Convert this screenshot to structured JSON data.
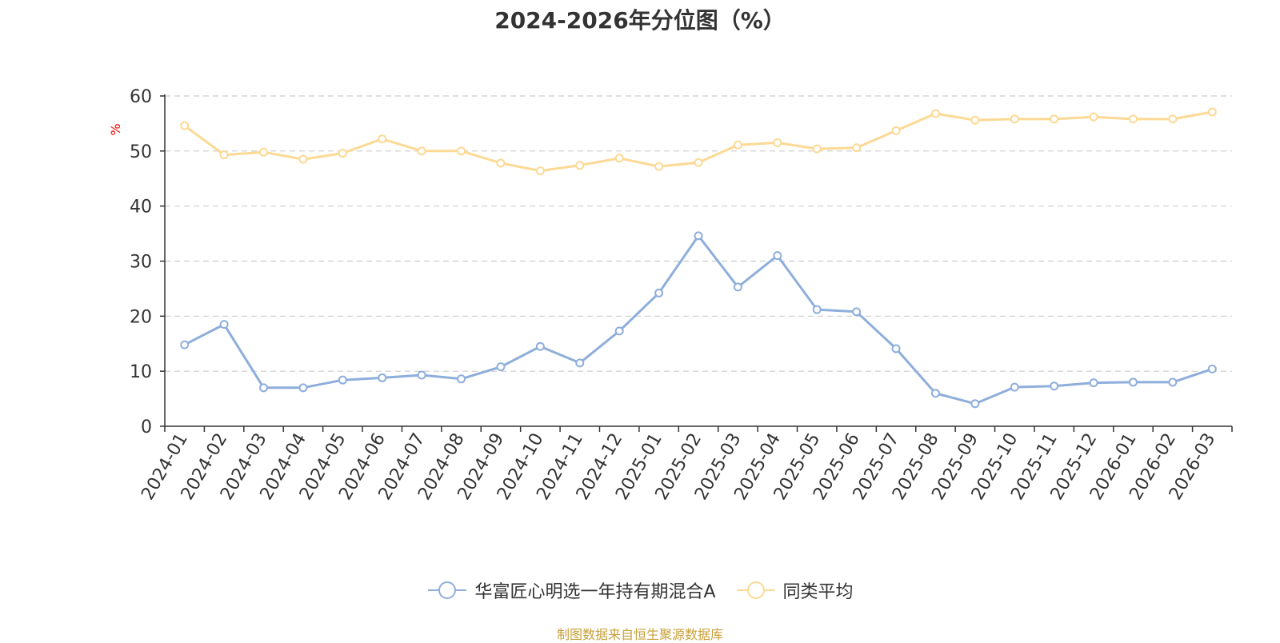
{
  "title": "2024-2026年分位图（%）",
  "source": "制图数据来自恒生聚源数据库",
  "chart_data": {
    "type": "line",
    "title": "2024-2026年分位图（%）",
    "ylabel": "%",
    "xlabel": "",
    "ylim": [
      0,
      60
    ],
    "yticks": [
      0,
      10,
      20,
      30,
      40,
      50,
      60
    ],
    "grid": true,
    "legend_position": "bottom",
    "categories": [
      "2024-01",
      "2024-02",
      "2024-03",
      "2024-04",
      "2024-05",
      "2024-06",
      "2024-07",
      "2024-08",
      "2024-09",
      "2024-10",
      "2024-11",
      "2024-12",
      "2025-01",
      "2025-02",
      "2025-03",
      "2025-04",
      "2025-05",
      "2025-06",
      "2025-07",
      "2025-08",
      "2025-09",
      "2025-10",
      "2025-11",
      "2025-12",
      "2026-01",
      "2026-02",
      "2026-03"
    ],
    "series": [
      {
        "name": "华富匠心明选一年持有期混合A",
        "color": "#8eaedb",
        "values": [
          14.8,
          18.5,
          7.0,
          7.0,
          8.4,
          8.8,
          9.3,
          8.6,
          10.8,
          14.5,
          11.5,
          17.3,
          24.2,
          34.6,
          25.3,
          31.0,
          21.2,
          20.8,
          14.1,
          6.0,
          4.1,
          7.1,
          7.3,
          7.9,
          8.0,
          8.0,
          10.4
        ]
      },
      {
        "name": "同类平均",
        "color": "#fcd994",
        "values": [
          54.6,
          49.3,
          49.8,
          48.5,
          49.6,
          52.2,
          50.0,
          50.0,
          47.8,
          46.4,
          47.4,
          48.7,
          47.2,
          47.9,
          51.1,
          51.5,
          50.4,
          50.6,
          53.7,
          56.8,
          55.6,
          55.8,
          55.8,
          56.2,
          55.8,
          55.8,
          57.1
        ]
      }
    ]
  }
}
